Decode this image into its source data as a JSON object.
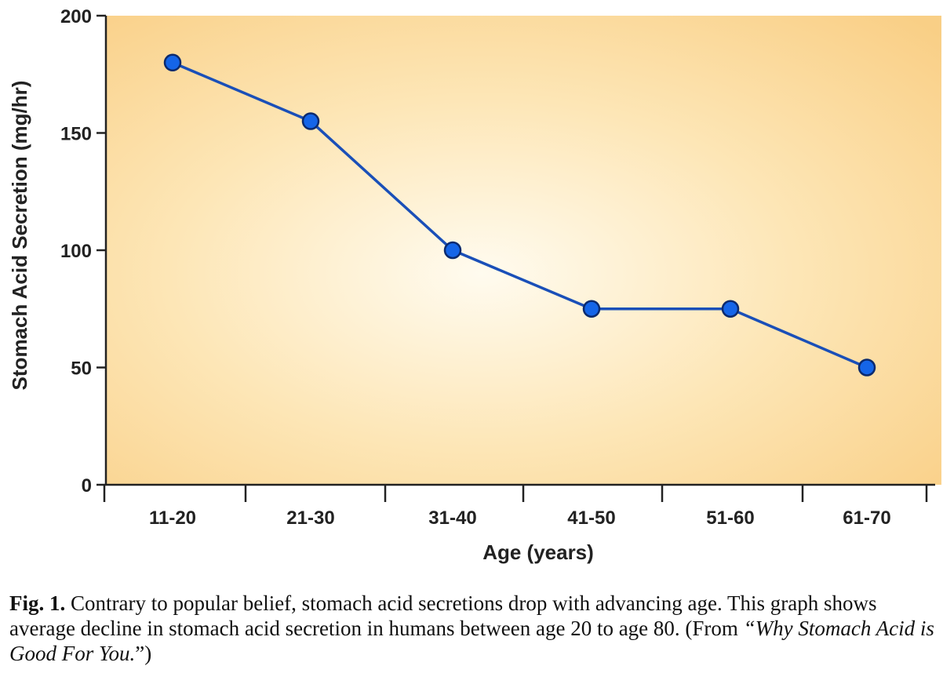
{
  "chart_data": {
    "type": "line",
    "categories": [
      "11-20",
      "21-30",
      "31-40",
      "41-50",
      "51-60",
      "61-70"
    ],
    "series": [
      {
        "values": [
          180,
          155,
          100,
          75,
          75,
          50
        ]
      }
    ],
    "xlabel": "Age (years)",
    "ylabel": "Stomach Acid Secretion (mg/hr)",
    "ylim": [
      0,
      200
    ],
    "yticks": [
      0,
      50,
      100,
      150,
      200
    ],
    "grid": false,
    "colors": {
      "line": "#1a4fb8",
      "marker": "#1565e8",
      "background_center": "#fffbef",
      "background_edge": "#f9cf86"
    }
  },
  "caption": {
    "label": "Fig. 1.",
    "text": " Contrary to popular belief, stomach acid secretions drop with advancing age. This graph shows average decline in stomach acid secretion in humans between age 20 to age 80. (From ",
    "source": "“Why Stomach Acid is Good For You.",
    "close": "”)"
  }
}
